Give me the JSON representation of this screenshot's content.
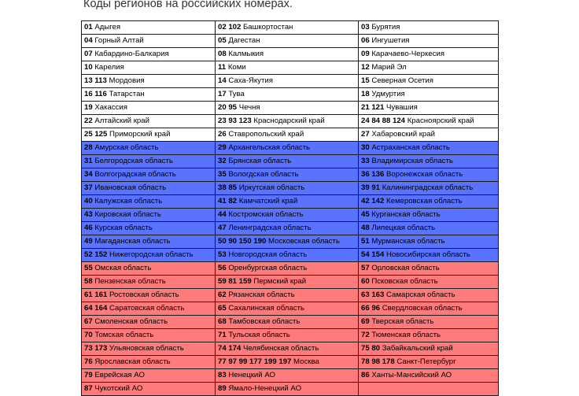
{
  "title": "Коды регионов на российских номерах.",
  "colors": {
    "white": "#ffffff",
    "blue": "#5a73ff",
    "red": "#ff7b7b",
    "border": "#1a1a1a"
  },
  "rows": [
    {
      "band": "white",
      "cells": [
        {
          "code": "01",
          "name": "Адыгея"
        },
        {
          "code": "02 102",
          "name": "Башкортостан"
        },
        {
          "code": "03",
          "name": "Бурятия"
        }
      ]
    },
    {
      "band": "white",
      "cells": [
        {
          "code": "04",
          "name": "Горный Алтай"
        },
        {
          "code": "05",
          "name": "Дагестан"
        },
        {
          "code": "06",
          "name": "Ингушетия"
        }
      ]
    },
    {
      "band": "white",
      "cells": [
        {
          "code": "07",
          "name": "Кабардино-Балкария"
        },
        {
          "code": "08",
          "name": "Калмыкия"
        },
        {
          "code": "09",
          "name": "Карачаево-Черкесия"
        }
      ]
    },
    {
      "band": "white",
      "cells": [
        {
          "code": "10",
          "name": "Карелия"
        },
        {
          "code": "11",
          "name": "Коми"
        },
        {
          "code": "12",
          "name": "Марий Эл"
        }
      ]
    },
    {
      "band": "white",
      "cells": [
        {
          "code": "13 113",
          "name": "Мордовия"
        },
        {
          "code": "14",
          "name": "Саха-Якутия"
        },
        {
          "code": "15",
          "name": "Северная Осетия"
        }
      ]
    },
    {
      "band": "white",
      "cells": [
        {
          "code": "16 116",
          "name": "Татарстан"
        },
        {
          "code": "17",
          "name": "Тува"
        },
        {
          "code": "18",
          "name": "Удмуртия"
        }
      ]
    },
    {
      "band": "white",
      "cells": [
        {
          "code": "19",
          "name": "Хакассия"
        },
        {
          "code": "20 95",
          "name": "Чечня"
        },
        {
          "code": "21 121",
          "name": "Чувашия"
        }
      ]
    },
    {
      "band": "white",
      "cells": [
        {
          "code": "22",
          "name": "Алтайский край"
        },
        {
          "code": "23 93 123",
          "name": "Краснодарский край"
        },
        {
          "code": "24 84 88 124",
          "name": "Красноярский край"
        }
      ]
    },
    {
      "band": "white",
      "cells": [
        {
          "code": "25 125",
          "name": "Приморский край"
        },
        {
          "code": "26",
          "name": "Ставропольский край"
        },
        {
          "code": "27",
          "name": "Хабаровский край"
        }
      ]
    },
    {
      "band": "blue",
      "cells": [
        {
          "code": "28",
          "name": "Амурская область"
        },
        {
          "code": "29",
          "name": "Архангельская область"
        },
        {
          "code": "30",
          "name": "Астраханская область"
        }
      ]
    },
    {
      "band": "blue",
      "cells": [
        {
          "code": "31",
          "name": "Белгородская область"
        },
        {
          "code": "32",
          "name": "Брянская область"
        },
        {
          "code": "33",
          "name": "Владимирская область"
        }
      ]
    },
    {
      "band": "blue",
      "cells": [
        {
          "code": "34",
          "name": "Волгоградская область"
        },
        {
          "code": "35",
          "name": "Вологдская область"
        },
        {
          "code": "36 136",
          "name": "Воронежская область"
        }
      ]
    },
    {
      "band": "blue",
      "cells": [
        {
          "code": "37",
          "name": "Ивановская область"
        },
        {
          "code": "38 85",
          "name": "Иркутская область"
        },
        {
          "code": "39 91",
          "name": "Калининградская область"
        }
      ]
    },
    {
      "band": "blue",
      "cells": [
        {
          "code": "40",
          "name": "Калужская область"
        },
        {
          "code": "41 82",
          "name": "Камчатский край"
        },
        {
          "code": "42 142",
          "name": "Кемеровская область"
        }
      ]
    },
    {
      "band": "blue",
      "cells": [
        {
          "code": "43",
          "name": "Кировская область"
        },
        {
          "code": "44",
          "name": "Костромская область"
        },
        {
          "code": "45",
          "name": "Курганская область"
        }
      ]
    },
    {
      "band": "blue",
      "cells": [
        {
          "code": "46",
          "name": "Курская область"
        },
        {
          "code": "47",
          "name": "Ленинградская область"
        },
        {
          "code": "48",
          "name": "Липецкая область"
        }
      ]
    },
    {
      "band": "blue",
      "cells": [
        {
          "code": "49",
          "name": "Магаданская область"
        },
        {
          "code": "50 90 150 190",
          "name": "Московская область"
        },
        {
          "code": "51",
          "name": "Мурманская область"
        }
      ]
    },
    {
      "band": "blue",
      "cells": [
        {
          "code": "52  152",
          "name": "Нижегородская область"
        },
        {
          "code": "53",
          "name": "Новгородская область"
        },
        {
          "code": "54 154",
          "name": "Новосибирская область"
        }
      ]
    },
    {
      "band": "red",
      "cells": [
        {
          "code": "55",
          "name": "Омская область"
        },
        {
          "code": "56",
          "name": "Оренбургская область"
        },
        {
          "code": "57",
          "name": "Орловская область"
        }
      ]
    },
    {
      "band": "red",
      "cells": [
        {
          "code": "58",
          "name": "Пензенская область"
        },
        {
          "code": "59 81 159",
          "name": "Пермский край"
        },
        {
          "code": "60",
          "name": "Псковская область"
        }
      ]
    },
    {
      "band": "red",
      "cells": [
        {
          "code": "61 161",
          "name": "Ростовская область"
        },
        {
          "code": "62",
          "name": "Рязанская область"
        },
        {
          "code": "63 163",
          "name": "Самарская область"
        }
      ]
    },
    {
      "band": "red",
      "cells": [
        {
          "code": "64 164",
          "name": "Саратовская область"
        },
        {
          "code": "65",
          "name": "Сахалинская область"
        },
        {
          "code": "66 96",
          "name": "Свердловская область"
        }
      ]
    },
    {
      "band": "red",
      "cells": [
        {
          "code": "67",
          "name": "Смоленская область"
        },
        {
          "code": "68",
          "name": "Тамбовская область"
        },
        {
          "code": "69",
          "name": "Тверская область"
        }
      ]
    },
    {
      "band": "red",
      "cells": [
        {
          "code": "70",
          "name": "Томская область"
        },
        {
          "code": "71",
          "name": "Тульская область"
        },
        {
          "code": "72",
          "name": "Тюменская область"
        }
      ]
    },
    {
      "band": "red",
      "cells": [
        {
          "code": "73 173",
          "name": "Ульяновская область"
        },
        {
          "code": "74 174",
          "name": "Челябинская область"
        },
        {
          "code": "75 80",
          "name": "Забайкальский край"
        }
      ]
    },
    {
      "band": "red",
      "cells": [
        {
          "code": "76",
          "name": "Ярославская область"
        },
        {
          "code": "77 97 99 177 199 197",
          "name": "Москва"
        },
        {
          "code": "78 98 178",
          "name": "Санкт-Петербург"
        }
      ]
    },
    {
      "band": "red",
      "cells": [
        {
          "code": "79",
          "name": "Еврейская АО"
        },
        {
          "code": "83",
          "name": "Ненецкий АО"
        },
        {
          "code": "86",
          "name": "Ханты-Мансийский АО"
        }
      ]
    },
    {
      "band": "red",
      "cells": [
        {
          "code": "87",
          "name": "Чукотский АО"
        },
        {
          "code": "89",
          "name": "Ямало-Ненецкий АО"
        },
        {
          "code": "",
          "name": ""
        }
      ]
    }
  ]
}
